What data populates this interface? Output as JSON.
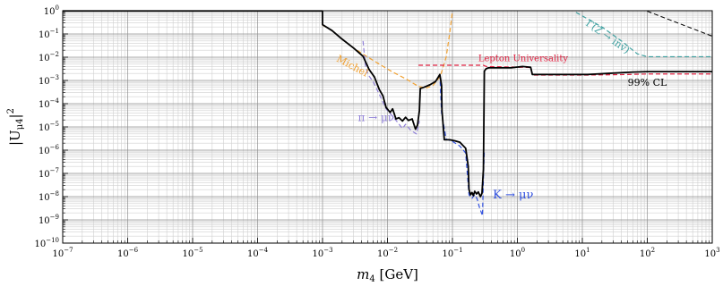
{
  "chart_data": {
    "type": "line",
    "xlabel_main": "m",
    "xlabel_sub": "4",
    "xlabel_unit": " [GeV]",
    "ylabel_main": "|U",
    "ylabel_sub": "μ4",
    "ylabel_end": "|",
    "ylabel_sup": "2",
    "xscale": "log",
    "yscale": "log",
    "xlim": [
      1e-07,
      1000
    ],
    "ylim": [
      1e-10,
      1
    ],
    "grid": true,
    "x_ticks": [
      {
        "base": "10",
        "exp": "−7",
        "value": 1e-07
      },
      {
        "base": "10",
        "exp": "−6",
        "value": 1e-06
      },
      {
        "base": "10",
        "exp": "−5",
        "value": 1e-05
      },
      {
        "base": "10",
        "exp": "−4",
        "value": 0.0001
      },
      {
        "base": "10",
        "exp": "−3",
        "value": 0.001
      },
      {
        "base": "10",
        "exp": "−2",
        "value": 0.01
      },
      {
        "base": "10",
        "exp": "−1",
        "value": 0.1
      },
      {
        "base": "10",
        "exp": "0",
        "value": 1
      },
      {
        "base": "10",
        "exp": "1",
        "value": 10
      },
      {
        "base": "10",
        "exp": "2",
        "value": 100
      },
      {
        "base": "10",
        "exp": "3",
        "value": 1000
      }
    ],
    "y_ticks": [
      {
        "base": "10",
        "exp": "0",
        "value": 1
      },
      {
        "base": "10",
        "exp": "−1",
        "value": 0.1
      },
      {
        "base": "10",
        "exp": "−2",
        "value": 0.01
      },
      {
        "base": "10",
        "exp": "−3",
        "value": 0.001
      },
      {
        "base": "10",
        "exp": "−4",
        "value": 0.0001
      },
      {
        "base": "10",
        "exp": "−5",
        "value": 1e-05
      },
      {
        "base": "10",
        "exp": "−6",
        "value": 1e-06
      },
      {
        "base": "10",
        "exp": "−7",
        "value": 1e-07
      },
      {
        "base": "10",
        "exp": "−8",
        "value": 1e-08
      },
      {
        "base": "10",
        "exp": "−9",
        "value": 1e-09
      },
      {
        "base": "10",
        "exp": "−10",
        "value": 1e-10
      }
    ],
    "annotations": [
      {
        "text": "Michel",
        "color": "#f0a030",
        "x": 0.0016,
        "y": 0.007,
        "rotate": 28,
        "size": 11
      },
      {
        "text": "π → μν",
        "color": "#9080d8",
        "x": 0.0035,
        "y": 1.8e-05,
        "rotate": 0,
        "size": 12
      },
      {
        "text": "K → μν",
        "color": "#3050e0",
        "x": 0.42,
        "y": 8.5e-09,
        "rotate": 0,
        "size": 13
      },
      {
        "text": "Lepton Universality",
        "color": "#e02040",
        "x": 0.25,
        "y": 0.0068,
        "rotate": 0,
        "size": 10
      },
      {
        "text": "99% CL",
        "color": "#000000",
        "x": 50,
        "y": 0.0006,
        "rotate": 0,
        "size": 11
      },
      {
        "text": "Γ(Z → inv)",
        "color": "#40a0a0",
        "x": 11,
        "y": 0.25,
        "rotate": 35,
        "size": 11
      }
    ],
    "series": [
      {
        "color": "#000000",
        "dash": "",
        "width": 1.8,
        "points": [
          [
            1e-07,
            0.98
          ],
          [
            0.000999,
            0.98
          ],
          [
            0.001001,
            0.25
          ],
          [
            0.0014,
            0.14
          ],
          [
            0.002,
            0.06
          ],
          [
            0.003,
            0.025
          ],
          [
            0.0042,
            0.011
          ],
          [
            0.0052,
            0.003
          ],
          [
            0.0063,
            0.0014
          ],
          [
            0.0075,
            0.0004
          ],
          [
            0.0085,
            0.00022
          ],
          [
            0.0095,
            7e-05
          ],
          [
            0.011,
            4.2e-05
          ],
          [
            0.012,
            6e-05
          ],
          [
            0.0135,
            2.2e-05
          ],
          [
            0.015,
            2.5e-05
          ],
          [
            0.017,
            1.8e-05
          ],
          [
            0.019,
            2.6e-05
          ],
          [
            0.021,
            1.9e-05
          ],
          [
            0.024,
            2.2e-05
          ],
          [
            0.027,
            8e-06
          ],
          [
            0.029,
            1.2e-05
          ],
          [
            0.031,
            5e-05
          ],
          [
            0.032,
            0.00045
          ],
          [
            0.036,
            0.0005
          ],
          [
            0.045,
            0.00065
          ],
          [
            0.055,
            0.0009
          ],
          [
            0.064,
            0.0018
          ],
          [
            0.068,
            0.0006
          ],
          [
            0.069,
            5e-05
          ],
          [
            0.075,
            2.8e-06
          ],
          [
            0.09,
            2.8e-06
          ],
          [
            0.11,
            2.5e-06
          ],
          [
            0.13,
            2.2e-06
          ],
          [
            0.16,
            1.2e-06
          ],
          [
            0.175,
            2e-07
          ],
          [
            0.18,
            2e-08
          ],
          [
            0.19,
            1.2e-08
          ],
          [
            0.2,
            1.5e-08
          ],
          [
            0.21,
            1.1e-08
          ],
          [
            0.22,
            1.7e-08
          ],
          [
            0.235,
            1.3e-08
          ],
          [
            0.25,
            1.6e-08
          ],
          [
            0.27,
            1e-08
          ],
          [
            0.285,
            1.4e-08
          ],
          [
            0.3,
            1.5e-07
          ],
          [
            0.31,
            0.0025
          ],
          [
            0.33,
            0.0032
          ],
          [
            0.36,
            0.0035
          ],
          [
            0.8,
            0.0035
          ],
          [
            1.2,
            0.004
          ],
          [
            1.6,
            0.0037
          ],
          [
            1.7,
            0.0018
          ],
          [
            2.5,
            0.0018
          ],
          [
            12,
            0.0018
          ],
          [
            24,
            0.002
          ],
          [
            60,
            0.0023
          ],
          [
            100,
            0.0024
          ],
          [
            1000,
            0.0024
          ]
        ]
      },
      {
        "color": "#f0a030",
        "dash": "5,3",
        "width": 1.2,
        "points": [
          [
            0.001,
            0.24
          ],
          [
            0.0014,
            0.14
          ],
          [
            0.002,
            0.06
          ],
          [
            0.003,
            0.025
          ],
          [
            0.005,
            0.01
          ],
          [
            0.008,
            0.0045
          ],
          [
            0.012,
            0.0023
          ],
          [
            0.02,
            0.0011
          ],
          [
            0.03,
            0.00055
          ],
          [
            0.04,
            0.00048
          ],
          [
            0.05,
            0.0006
          ],
          [
            0.065,
            0.0015
          ],
          [
            0.08,
            0.01
          ],
          [
            0.09,
            0.09
          ],
          [
            0.1,
            0.95
          ]
        ]
      },
      {
        "color": "#9080d8",
        "dash": "5,3",
        "width": 1.2,
        "points": [
          [
            0.0042,
            0.05
          ],
          [
            0.0046,
            0.004
          ],
          [
            0.005,
            0.0018
          ],
          [
            0.006,
            0.0009
          ],
          [
            0.0075,
            0.00025
          ],
          [
            0.0095,
            6e-05
          ],
          [
            0.011,
            3.8e-05
          ],
          [
            0.014,
            1.7e-05
          ],
          [
            0.017,
            8.5e-06
          ],
          [
            0.019,
            1.3e-05
          ],
          [
            0.023,
            7e-06
          ],
          [
            0.028,
            5e-06
          ],
          [
            0.031,
            1.8e-05
          ]
        ]
      },
      {
        "color": "#3050e0",
        "dash": "5,3",
        "width": 1.2,
        "points": [
          [
            0.064,
            0.0018
          ],
          [
            0.068,
            4e-05
          ],
          [
            0.08,
            3e-06
          ],
          [
            0.1,
            2.4e-06
          ],
          [
            0.13,
            1.5e-06
          ],
          [
            0.16,
            7.5e-07
          ],
          [
            0.18,
            1.2e-08
          ],
          [
            0.2,
            8.5e-09
          ],
          [
            0.22,
            1.2e-08
          ],
          [
            0.24,
            8e-09
          ],
          [
            0.26,
            3.5e-09
          ],
          [
            0.28,
            2e-09
          ],
          [
            0.29,
            1.5e-09
          ],
          [
            0.3,
            6e-08
          ],
          [
            0.31,
            1e-06
          ]
        ]
      },
      {
        "color": "#e02040",
        "dash": "5,3",
        "width": 1.2,
        "points": [
          [
            0.03,
            0.0045
          ],
          [
            0.3,
            0.0045
          ],
          [
            0.33,
            0.004
          ],
          [
            1.6,
            0.0036
          ],
          [
            1.7,
            0.0017
          ],
          [
            12,
            0.0017
          ],
          [
            50,
            0.0018
          ],
          [
            100,
            0.0019
          ],
          [
            1000,
            0.0019
          ]
        ]
      },
      {
        "color": "#40a0a0",
        "dash": "5,3",
        "width": 1.2,
        "points": [
          [
            8,
            0.85
          ],
          [
            20,
            0.2
          ],
          [
            40,
            0.05
          ],
          [
            70,
            0.014
          ],
          [
            100,
            0.0105
          ],
          [
            1000,
            0.0105
          ]
        ]
      },
      {
        "color": "#000000",
        "dash": "5,3",
        "width": 1.0,
        "points": [
          [
            100,
            0.95
          ],
          [
            1000,
            0.08
          ]
        ]
      }
    ]
  }
}
